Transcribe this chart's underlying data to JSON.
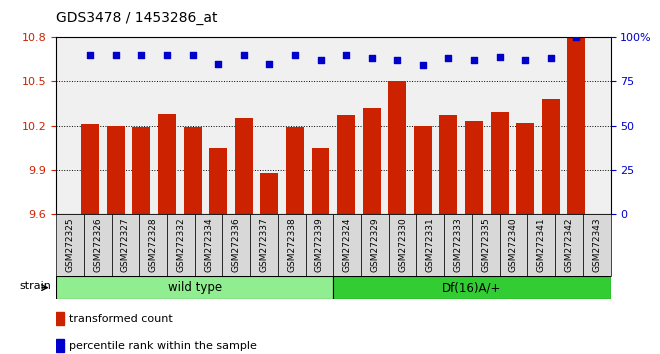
{
  "title": "GDS3478 / 1453286_at",
  "categories": [
    "GSM272325",
    "GSM272326",
    "GSM272327",
    "GSM272328",
    "GSM272332",
    "GSM272334",
    "GSM272336",
    "GSM272337",
    "GSM272338",
    "GSM272339",
    "GSM272324",
    "GSM272329",
    "GSM272330",
    "GSM272331",
    "GSM272333",
    "GSM272335",
    "GSM272340",
    "GSM272341",
    "GSM272342",
    "GSM272343"
  ],
  "bar_values": [
    10.21,
    10.2,
    10.19,
    10.28,
    10.19,
    10.05,
    10.25,
    9.88,
    10.19,
    10.05,
    10.27,
    10.32,
    10.5,
    10.2,
    10.27,
    10.23,
    10.29,
    10.22,
    10.38,
    10.8
  ],
  "percentile_values": [
    90,
    90,
    90,
    90,
    90,
    85,
    90,
    85,
    90,
    87,
    90,
    88,
    87,
    84,
    88,
    87,
    89,
    87,
    88,
    100
  ],
  "bar_color": "#cc2200",
  "dot_color": "#0000cc",
  "ylim_left": [
    9.6,
    10.8
  ],
  "ylim_right": [
    0,
    100
  ],
  "yticks_left": [
    9.6,
    9.9,
    10.2,
    10.5,
    10.8
  ],
  "yticks_right": [
    0,
    25,
    50,
    75,
    100
  ],
  "group1_label": "wild type",
  "group2_label": "Df(16)A/+",
  "group1_count": 10,
  "group2_count": 10,
  "strain_label": "strain",
  "legend1": "transformed count",
  "legend2": "percentile rank within the sample",
  "bar_color_light": "#cc2200",
  "dot_color_str": "#0000cc",
  "group1_color": "#90ee90",
  "group2_color": "#32cd32",
  "plot_bg": "#f0f0f0",
  "grid_dotted_ticks": [
    9.9,
    10.2,
    10.5
  ]
}
